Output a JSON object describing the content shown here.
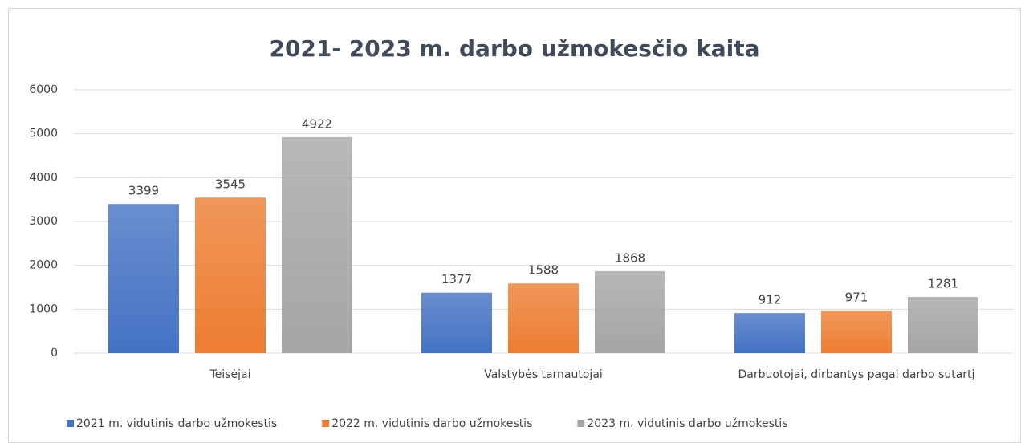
{
  "chart_data": {
    "type": "bar",
    "title": "2021- 2023 m. darbo užmokesčio kaita",
    "categories": [
      "Teisėjai",
      "Valstybės tarnautojai",
      "Darbuotojai, dirbantys pagal darbo sutartį"
    ],
    "series": [
      {
        "name": "2021 m. vidutinis darbo užmokestis",
        "color": "#4472c4",
        "values": [
          3399,
          1377,
          912
        ]
      },
      {
        "name": "2022 m. vidutinis darbo užmokestis",
        "color": "#ed7d31",
        "values": [
          3545,
          1588,
          971
        ]
      },
      {
        "name": "2023 m. vidutinis darbo užmokestis",
        "color": "#a5a5a5",
        "values": [
          4922,
          1868,
          1281
        ]
      }
    ],
    "ylim": [
      0,
      6000
    ],
    "yticks": [
      0,
      1000,
      2000,
      3000,
      4000,
      5000,
      6000
    ],
    "grid": true,
    "legend": "bottom"
  }
}
